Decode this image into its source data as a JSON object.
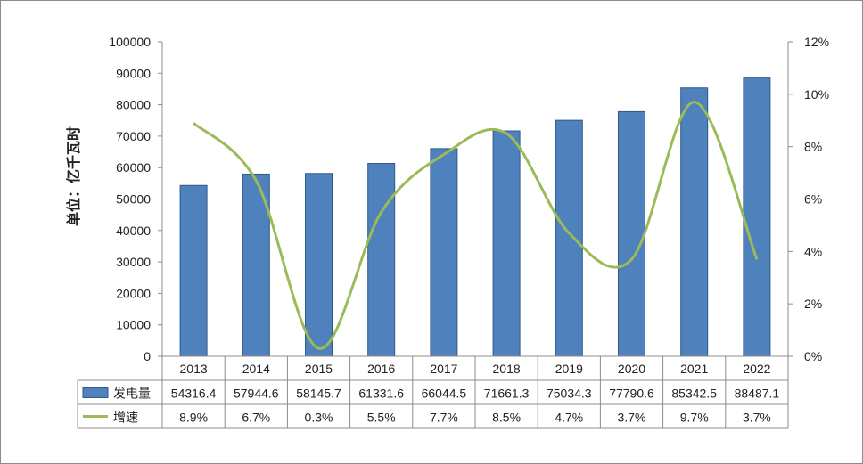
{
  "chart_data": {
    "type": "bar+line",
    "categories": [
      "2013",
      "2014",
      "2015",
      "2016",
      "2017",
      "2018",
      "2019",
      "2020",
      "2021",
      "2022"
    ],
    "series": [
      {
        "name": "发电量",
        "type": "bar",
        "axis": "left",
        "values": [
          54316.4,
          57944.6,
          58145.7,
          61331.6,
          66044.5,
          71661.3,
          75034.3,
          77790.6,
          85342.5,
          88487.1
        ],
        "labels": [
          "54316.4",
          "57944.6",
          "58145.7",
          "61331.6",
          "66044.5",
          "71661.3",
          "75034.3",
          "77790.6",
          "85342.5",
          "88487.1"
        ],
        "color": "#4f81bd"
      },
      {
        "name": "增速",
        "type": "line",
        "axis": "right",
        "values": [
          8.9,
          6.7,
          0.3,
          5.5,
          7.7,
          8.5,
          4.7,
          3.7,
          9.7,
          3.7
        ],
        "labels": [
          "8.9%",
          "6.7%",
          "0.3%",
          "5.5%",
          "7.7%",
          "8.5%",
          "4.7%",
          "3.7%",
          "9.7%",
          "3.7%"
        ],
        "color": "#9bbb59"
      }
    ],
    "ylabel": "单位：亿千瓦时",
    "ylim": [
      0,
      100000
    ],
    "yticks": [
      "0",
      "10000",
      "20000",
      "30000",
      "40000",
      "50000",
      "60000",
      "70000",
      "80000",
      "90000",
      "100000"
    ],
    "y2lim": [
      0,
      12
    ],
    "y2ticks": [
      "0%",
      "2%",
      "4%",
      "6%",
      "8%",
      "10%",
      "12%"
    ],
    "grid": false,
    "legend": "data-table"
  }
}
